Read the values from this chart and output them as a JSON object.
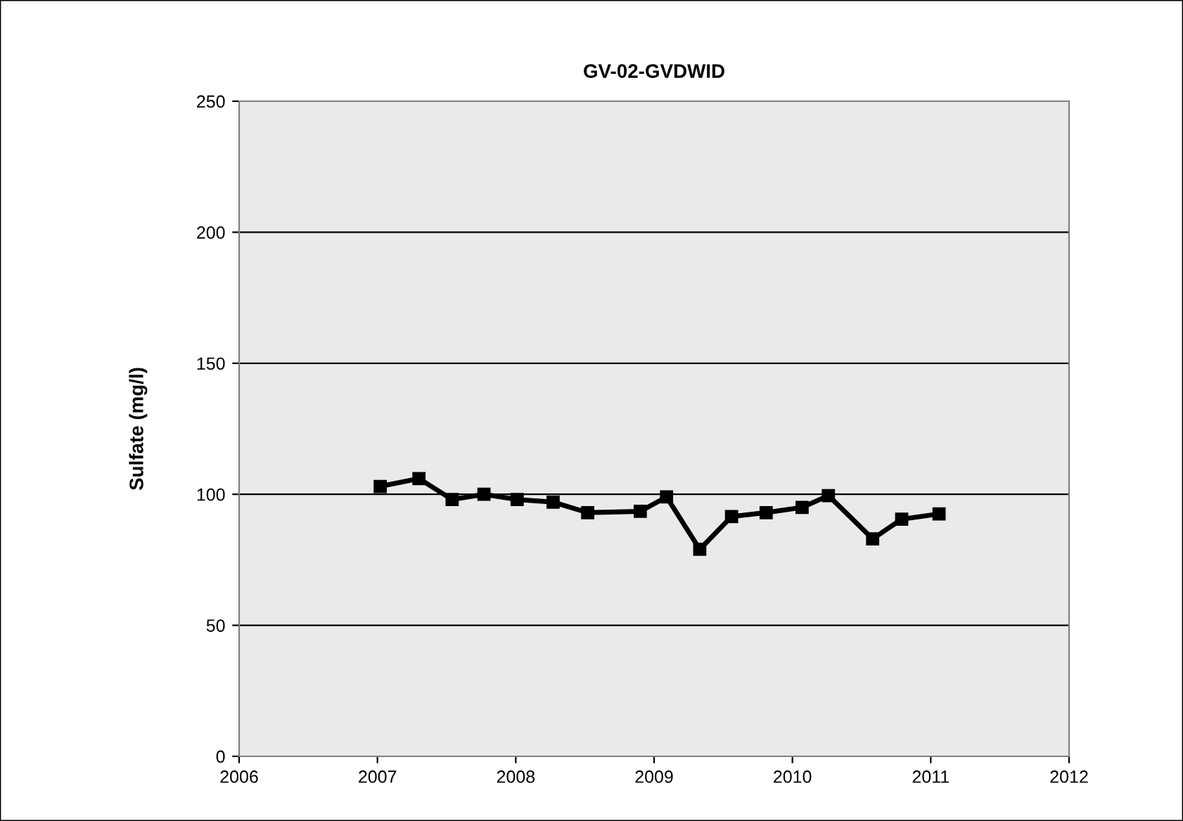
{
  "chart_data": {
    "type": "line",
    "title": "GV-02-GVDWID",
    "ylabel": "Sulfate (mg/l)",
    "x": [
      2007.02,
      2007.3,
      2007.54,
      2007.77,
      2008.01,
      2008.27,
      2008.52,
      2008.9,
      2009.09,
      2009.33,
      2009.56,
      2009.81,
      2010.07,
      2010.26,
      2010.58,
      2010.79,
      2011.06
    ],
    "series": [
      {
        "color": "#000000",
        "values": [
          103,
          106,
          98,
          100,
          98,
          97,
          93,
          93.5,
          99,
          79,
          91.5,
          93,
          95,
          99.5,
          83,
          90.5,
          92.5
        ]
      }
    ],
    "xlim": [
      2006,
      2012
    ],
    "xticks": [
      2006,
      2007,
      2008,
      2009,
      2010,
      2011,
      2012
    ],
    "ylim": [
      0,
      250
    ],
    "yticks": [
      0,
      50,
      100,
      150,
      200,
      250
    ],
    "grid": "y",
    "marker": "square",
    "line_style": "solid"
  }
}
